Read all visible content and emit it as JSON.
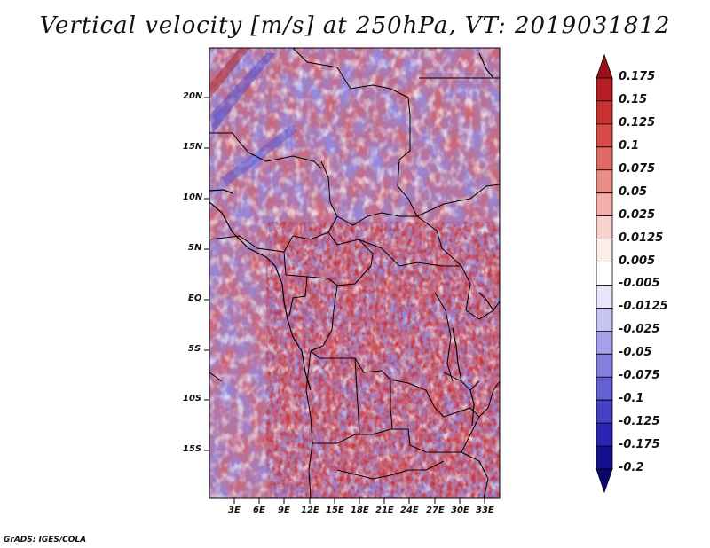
{
  "title": "Vertical velocity [m/s] at 250hPa, VT: 2019031812",
  "credit": "GrADS: IGES/COLA",
  "map": {
    "lat_labels": [
      "20N",
      "15N",
      "10N",
      "5N",
      "EQ",
      "5S",
      "10S",
      "15S"
    ],
    "lon_labels": [
      "3E",
      "6E",
      "9E",
      "12E",
      "15E",
      "18E",
      "21E",
      "24E",
      "27E",
      "30E",
      "33E"
    ]
  },
  "colorbar": {
    "labels": [
      "0.175",
      "0.15",
      "0.125",
      "0.1",
      "0.075",
      "0.05",
      "0.025",
      "0.0125",
      "0.005",
      "-0.005",
      "-0.0125",
      "-0.025",
      "-0.05",
      "-0.075",
      "-0.1",
      "-0.125",
      "-0.175",
      "-0.2"
    ],
    "colors": [
      "#a00e1a",
      "#b61e26",
      "#c83434",
      "#d64c4a",
      "#e06a66",
      "#ea8c88",
      "#f2afab",
      "#f8d0cc",
      "#fcecea",
      "#ffffff",
      "#e8e6fb",
      "#c8c4f2",
      "#a6a0ea",
      "#8580df",
      "#6560d4",
      "#4640c6",
      "#2c24b4",
      "#16108f",
      "#0a0670"
    ]
  }
}
